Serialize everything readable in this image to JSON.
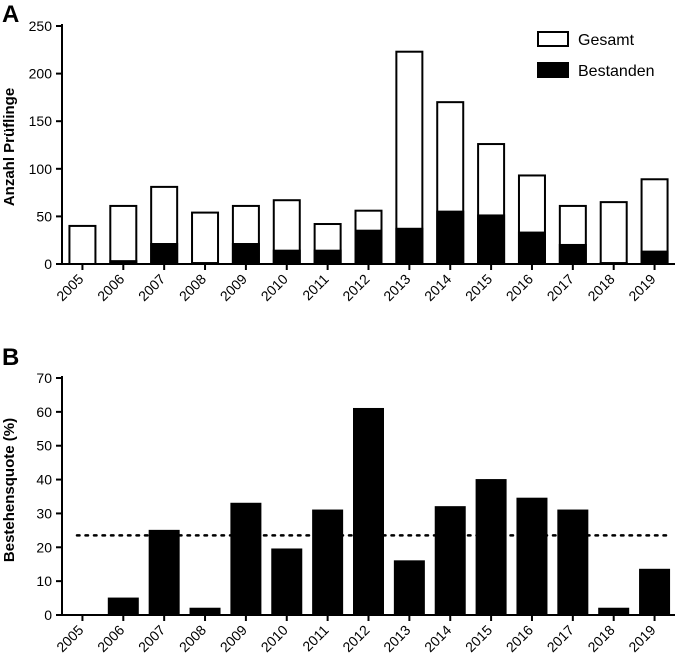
{
  "chart_data": [
    {
      "panel": "A",
      "type": "bar",
      "categories": [
        "2005",
        "2006",
        "2007",
        "2008",
        "2009",
        "2010",
        "2011",
        "2012",
        "2013",
        "2014",
        "2015",
        "2016",
        "2017",
        "2018",
        "2019"
      ],
      "series": [
        {
          "name": "Gesamt",
          "values": [
            40,
            61,
            81,
            54,
            61,
            67,
            42,
            56,
            223,
            170,
            126,
            93,
            61,
            65,
            89
          ]
        },
        {
          "name": "Bestanden",
          "values": [
            0,
            3,
            21,
            1,
            21,
            14,
            14,
            35,
            37,
            55,
            51,
            33,
            20,
            1,
            13
          ]
        }
      ],
      "ylabel": "Anzahl Prüflinge",
      "ylim": [
        0,
        250
      ],
      "yticks": [
        0,
        50,
        100,
        150,
        200,
        250
      ],
      "legend_position": "top-right",
      "grid": false
    },
    {
      "panel": "B",
      "type": "bar",
      "categories": [
        "2005",
        "2006",
        "2007",
        "2008",
        "2009",
        "2010",
        "2011",
        "2012",
        "2013",
        "2014",
        "2015",
        "2016",
        "2017",
        "2018",
        "2019"
      ],
      "series": [
        {
          "values": [
            0,
            5,
            25,
            2,
            33,
            19.5,
            31,
            61,
            16,
            32,
            40,
            34.5,
            31,
            2,
            13.5
          ]
        }
      ],
      "reference_line": 23.5,
      "ylabel": "Bestehensquote (%)",
      "ylim": [
        0,
        70
      ],
      "yticks": [
        0,
        10,
        20,
        30,
        40,
        50,
        60,
        70
      ],
      "grid": false
    }
  ],
  "colors": {
    "gesamt_fill": "#ffffff",
    "bestanden_fill": "#000000",
    "axis": "#000000"
  }
}
